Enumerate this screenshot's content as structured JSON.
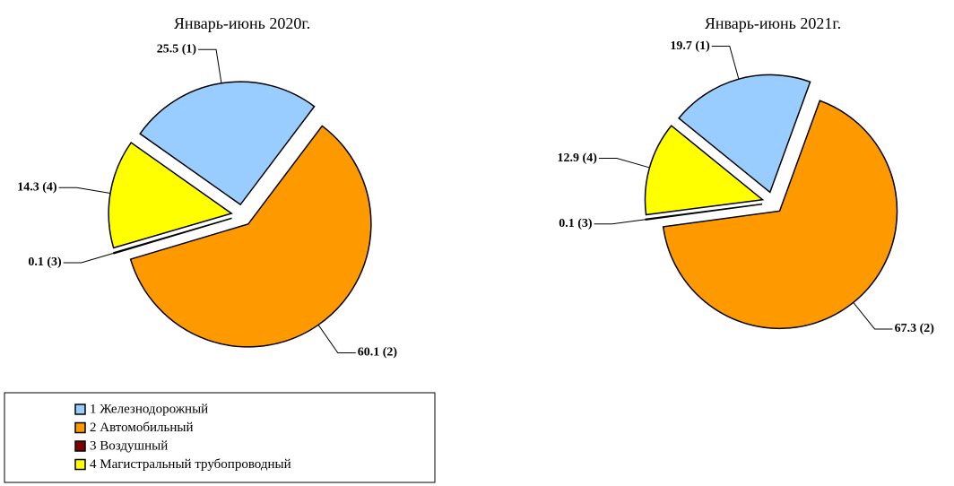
{
  "chart_data": [
    {
      "type": "pie",
      "title": "Январь-июнь 2020г.",
      "values": [
        25.5,
        60.1,
        0.1,
        14.3
      ],
      "value_labels": [
        "25.5 (1)",
        "60.1 (2)",
        "0.1 (3)",
        "14.3 (4)"
      ]
    },
    {
      "type": "pie",
      "title": "Январь-июнь 2021г.",
      "values": [
        19.7,
        67.3,
        0.1,
        12.9
      ],
      "value_labels": [
        "19.7 (1)",
        "67.3 (2)",
        "0.1 (3)",
        "12.9 (4)"
      ]
    }
  ],
  "legend": {
    "labels": [
      "1 Железнодорожный",
      "2 Автомобильный",
      "3 Воздушный",
      "4 Магистральный трубопроводный"
    ],
    "colors": [
      "#99ccff",
      "#ff9900",
      "#800000",
      "#ffff00"
    ]
  }
}
